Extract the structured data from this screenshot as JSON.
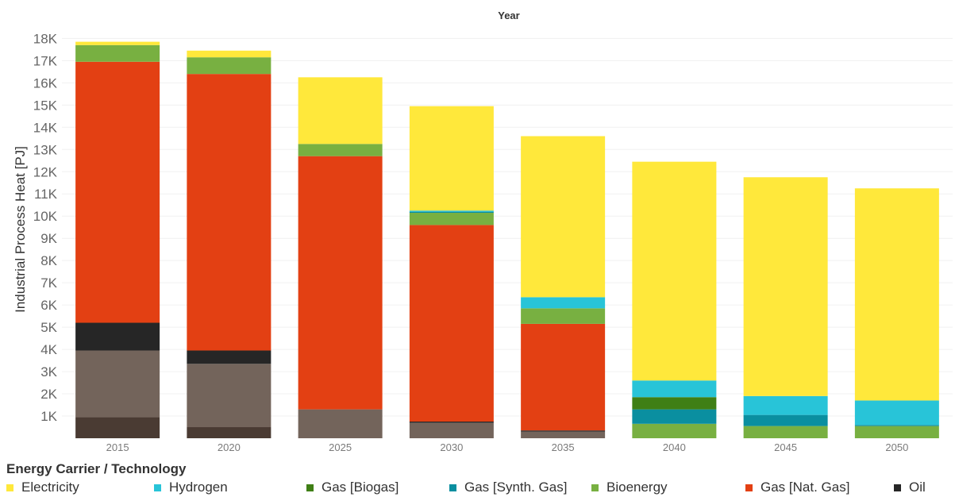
{
  "chart_data": {
    "type": "bar",
    "stacked": true,
    "title": "Year",
    "xlabel": "",
    "ylabel": "Industrial Process Heat [PJ]",
    "ylim": [
      0,
      18300
    ],
    "yticks": [
      1000,
      2000,
      3000,
      4000,
      5000,
      6000,
      7000,
      8000,
      9000,
      10000,
      11000,
      12000,
      13000,
      14000,
      15000,
      16000,
      17000,
      18000
    ],
    "ytick_labels": [
      "1K",
      "2K",
      "3K",
      "4K",
      "5K",
      "6K",
      "7K",
      "8K",
      "9K",
      "10K",
      "11K",
      "12K",
      "13K",
      "14K",
      "15K",
      "16K",
      "17K",
      "18K"
    ],
    "grid": true,
    "categories": [
      "2015",
      "2020",
      "2025",
      "2030",
      "2035",
      "2040",
      "2045",
      "2050"
    ],
    "series": [
      {
        "key": "coal",
        "color": "#4a3b33",
        "values": [
          950,
          500,
          0,
          0,
          0,
          0,
          0,
          0
        ]
      },
      {
        "key": "other",
        "color": "#73645b",
        "values": [
          3000,
          2850,
          1300,
          700,
          300,
          0,
          0,
          0
        ]
      },
      {
        "key": "oil",
        "name": "Oil",
        "color": "#262626",
        "values": [
          1250,
          600,
          0,
          50,
          50,
          0,
          0,
          0
        ]
      },
      {
        "key": "natgas",
        "name": "Gas [Nat. Gas]",
        "color": "#e34013",
        "values": [
          11750,
          12450,
          11400,
          8850,
          4800,
          0,
          0,
          0
        ]
      },
      {
        "key": "bioenergy",
        "name": "Bioenergy",
        "color": "#78b041",
        "values": [
          750,
          750,
          550,
          550,
          700,
          650,
          550,
          550
        ]
      },
      {
        "key": "synthgas",
        "name": "Gas [Synth. Gas]",
        "color": "#0a8fa0",
        "values": [
          0,
          0,
          0,
          50,
          0,
          650,
          500,
          50
        ]
      },
      {
        "key": "biogas",
        "name": "Gas [Biogas]",
        "color": "#3f7f15",
        "values": [
          0,
          0,
          0,
          0,
          0,
          550,
          0,
          0
        ]
      },
      {
        "key": "hydrogen",
        "name": "Hydrogen",
        "color": "#28c4d8",
        "values": [
          0,
          0,
          0,
          50,
          500,
          750,
          850,
          1100
        ]
      },
      {
        "key": "electricity",
        "name": "Electricity",
        "color": "#ffe83b",
        "values": [
          150,
          300,
          3000,
          4700,
          7250,
          9850,
          9850,
          9550
        ]
      }
    ],
    "legend": {
      "title": "Energy Carrier / Technology",
      "position": "bottom",
      "order": [
        "electricity",
        "hydrogen",
        "biogas",
        "synthgas",
        "bioenergy",
        "natgas",
        "oil"
      ]
    }
  }
}
